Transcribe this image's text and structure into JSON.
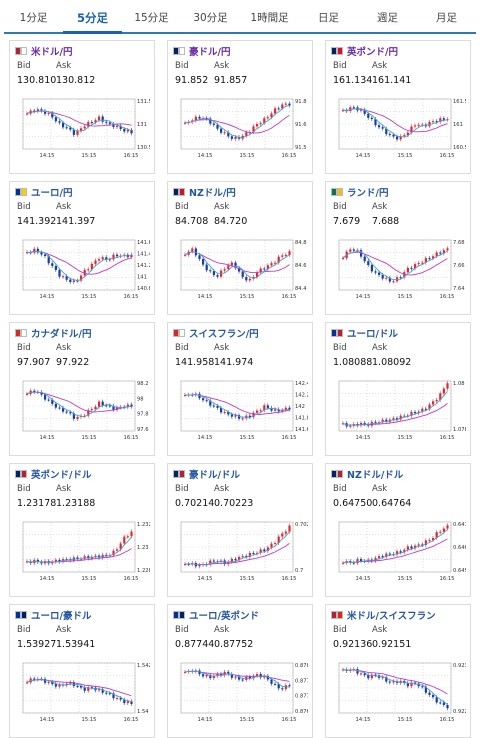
{
  "tabs": [
    "1分足",
    "5分足",
    "15分足",
    "30分足",
    "1時間足",
    "日足",
    "週足",
    "月足"
  ],
  "active_tab": 1,
  "labels": {
    "bid": "Bid",
    "ask": "Ask"
  },
  "colors": {
    "up": "#e8252c",
    "down": "#1a3aa8",
    "ma_fast": "#3da4d6",
    "ma_slow": "#c03ac8",
    "grid": "#c8c8c8"
  },
  "cards": [
    {
      "pair": "米ドル/円",
      "flag": [
        "#b22234",
        "#ffffff"
      ],
      "bid": "130.810",
      "ask": "130.812",
      "xticks": [
        "14:15",
        "15:15",
        "16:15"
      ],
      "yticks": [
        "131.5",
        "131",
        "130.5"
      ],
      "ylim": [
        130.4,
        131.6
      ],
      "trend": [
        131.25,
        131.35,
        131.3,
        131.2,
        131.0,
        130.9,
        130.75,
        130.95,
        131.05,
        131.15,
        131.0,
        130.95,
        130.85,
        130.8
      ]
    },
    {
      "pair": "豪ドル/円",
      "flag": [
        "#012169",
        "#ffffff"
      ],
      "bid": "91.852",
      "ask": "91.857",
      "xticks": [
        "14:15",
        "15:15",
        "16:15"
      ],
      "yticks": [
        "91.8",
        "91.6",
        "91.5"
      ],
      "ylim": [
        91.4,
        91.9
      ],
      "trend": [
        91.65,
        91.7,
        91.72,
        91.68,
        91.6,
        91.55,
        91.5,
        91.52,
        91.58,
        91.65,
        91.7,
        91.78,
        91.84,
        91.85
      ]
    },
    {
      "pair": "英ポンド/円",
      "flag": [
        "#012169",
        "#cf142b"
      ],
      "bid": "161.134",
      "ask": "161.141",
      "xticks": [
        "14:15",
        "15:15",
        "16:15"
      ],
      "yticks": [
        "161.5",
        "161",
        "160.5"
      ],
      "ylim": [
        160.4,
        161.6
      ],
      "trend": [
        161.3,
        161.4,
        161.35,
        161.2,
        161.0,
        160.85,
        160.7,
        160.65,
        160.8,
        161.0,
        160.95,
        161.05,
        161.1,
        161.13
      ]
    },
    {
      "pair": "ユーロ/円",
      "flag": [
        "#003399",
        "#ffcc00"
      ],
      "bid": "141.392",
      "ask": "141.397",
      "xticks": [
        "14:15",
        "15:15",
        "16:15"
      ],
      "yticks": [
        "141.6",
        "141.4",
        "141.2",
        "141",
        "140.8"
      ],
      "ylim": [
        140.7,
        141.7
      ],
      "trend": [
        141.45,
        141.5,
        141.4,
        141.2,
        141.0,
        140.9,
        140.85,
        141.05,
        141.2,
        141.35,
        141.3,
        141.4,
        141.38,
        141.39
      ]
    },
    {
      "pair": "NZドル/円",
      "flag": [
        "#012169",
        "#cc142b"
      ],
      "bid": "84.708",
      "ask": "84.720",
      "xticks": [
        "14:15",
        "15:15",
        "16:15"
      ],
      "yticks": [
        "84.8",
        "84.6",
        "84.4"
      ],
      "ylim": [
        84.3,
        84.85
      ],
      "trend": [
        84.7,
        84.75,
        84.6,
        84.5,
        84.45,
        84.55,
        84.6,
        84.45,
        84.4,
        84.5,
        84.55,
        84.6,
        84.68,
        84.71
      ]
    },
    {
      "pair": "ランド/円",
      "flag": [
        "#007a4d",
        "#ffb612"
      ],
      "bid": "7.679",
      "ask": "7.688",
      "xticks": [
        "14:15",
        "15:15",
        "16:15"
      ],
      "yticks": [
        "7.68",
        "7.66",
        "7.64"
      ],
      "ylim": [
        7.63,
        7.69
      ],
      "trend": [
        7.67,
        7.68,
        7.675,
        7.66,
        7.65,
        7.645,
        7.64,
        7.645,
        7.655,
        7.66,
        7.665,
        7.67,
        7.675,
        7.679
      ]
    },
    {
      "pair": "カナダドル/円",
      "flag": [
        "#d52b1e",
        "#ffffff"
      ],
      "bid": "97.907",
      "ask": "97.922",
      "xticks": [
        "14:15",
        "15:15",
        "16:15"
      ],
      "yticks": [
        "98.2",
        "98",
        "97.8",
        "97.6"
      ],
      "ylim": [
        97.5,
        98.3
      ],
      "trend": [
        98.1,
        98.15,
        98.05,
        97.95,
        97.85,
        97.8,
        97.7,
        97.75,
        97.85,
        97.95,
        97.9,
        97.85,
        97.9,
        97.9
      ]
    },
    {
      "pair": "スイスフラン/円",
      "flag": [
        "#d52b1e",
        "#ffffff"
      ],
      "bid": "141.958",
      "ask": "141.974",
      "xticks": [
        "14:15",
        "15:15",
        "16:15"
      ],
      "yticks": [
        "142.4",
        "142.2",
        "142",
        "141.8",
        "141.6"
      ],
      "ylim": [
        141.5,
        142.5
      ],
      "trend": [
        142.2,
        142.25,
        142.15,
        142.05,
        141.95,
        141.85,
        141.8,
        141.75,
        141.8,
        141.9,
        142.0,
        141.9,
        141.92,
        141.96
      ]
    },
    {
      "pair": "ユーロ/ドル",
      "flag": [
        "#003399",
        "#b22234"
      ],
      "bid": "1.08088",
      "ask": "1.08092",
      "xticks": [
        "14:15",
        "15:15",
        "16:15"
      ],
      "yticks": [
        "1.08",
        "1.078"
      ],
      "ylim": [
        1.077,
        1.081
      ],
      "trend": [
        1.0775,
        1.0774,
        1.0776,
        1.0775,
        1.0777,
        1.0778,
        1.0779,
        1.0781,
        1.0783,
        1.0785,
        1.0787,
        1.0792,
        1.0798,
        1.0809
      ]
    },
    {
      "pair": "英ポンド/ドル",
      "flag": [
        "#012169",
        "#b22234"
      ],
      "bid": "1.23178",
      "ask": "1.23188",
      "xticks": [
        "14:15",
        "15:15",
        "16:15"
      ],
      "yticks": [
        "1.232",
        "1.23",
        "1.228"
      ],
      "ylim": [
        1.227,
        1.233
      ],
      "trend": [
        1.2282,
        1.2283,
        1.2281,
        1.2282,
        1.2284,
        1.2285,
        1.2286,
        1.2287,
        1.2288,
        1.2289,
        1.229,
        1.2295,
        1.231,
        1.2318
      ]
    },
    {
      "pair": "豪ドル/ドル",
      "flag": [
        "#012169",
        "#b22234"
      ],
      "bid": "0.70214",
      "ask": "0.70223",
      "xticks": [
        "14:15",
        "15:15",
        "16:15"
      ],
      "yticks": [
        "0.702",
        "0.7"
      ],
      "ylim": [
        0.6985,
        0.7025
      ],
      "trend": [
        0.6992,
        0.6991,
        0.699,
        0.6993,
        0.6994,
        0.6992,
        0.6995,
        0.6997,
        0.6999,
        0.7001,
        0.7003,
        0.7008,
        0.7015,
        0.7021
      ]
    },
    {
      "pair": "NZドル/ドル",
      "flag": [
        "#012169",
        "#b22234"
      ],
      "bid": "0.64750",
      "ask": "0.64764",
      "xticks": [
        "14:15",
        "15:15",
        "16:15"
      ],
      "yticks": [
        "0.647",
        "0.646",
        "0.645"
      ],
      "ylim": [
        0.6445,
        0.6478
      ],
      "trend": [
        0.6452,
        0.6451,
        0.6453,
        0.6452,
        0.6454,
        0.6456,
        0.6457,
        0.6458,
        0.6461,
        0.6462,
        0.6464,
        0.6467,
        0.6472,
        0.6475
      ]
    },
    {
      "pair": "ユーロ/豪ドル",
      "flag": [
        "#003399",
        "#012169"
      ],
      "bid": "1.53927",
      "ask": "1.53941",
      "xticks": [
        "14:15",
        "15:15",
        "16:15"
      ],
      "yticks": [
        "1.542",
        "1.54"
      ],
      "ylim": [
        1.5385,
        1.5428
      ],
      "trend": [
        1.5412,
        1.5415,
        1.5413,
        1.541,
        1.5408,
        1.5411,
        1.5409,
        1.5405,
        1.5407,
        1.5404,
        1.5402,
        1.5398,
        1.5395,
        1.5393
      ]
    },
    {
      "pair": "ユーロ/英ポンド",
      "flag": [
        "#003399",
        "#012169"
      ],
      "bid": "0.87744",
      "ask": "0.87752",
      "xticks": [
        "14:15",
        "15:15",
        "16:15"
      ],
      "yticks": [
        "0.878",
        "0.8775",
        "0.877",
        "0.8765"
      ],
      "ylim": [
        0.8762,
        0.8783
      ],
      "trend": [
        0.8779,
        0.878,
        0.8778,
        0.8777,
        0.8778,
        0.8779,
        0.8777,
        0.8776,
        0.8777,
        0.8778,
        0.8777,
        0.8774,
        0.8772,
        0.8774
      ]
    },
    {
      "pair": "米ドル/スイスフラン",
      "flag": [
        "#b22234",
        "#d52b1e"
      ],
      "bid": "0.92136",
      "ask": "0.92151",
      "xticks": [
        "14:15",
        "15:15",
        "16:15"
      ],
      "yticks": [
        "0.923",
        "0.922"
      ],
      "ylim": [
        0.9211,
        0.9236
      ],
      "trend": [
        0.9232,
        0.9233,
        0.9231,
        0.9229,
        0.923,
        0.9228,
        0.9226,
        0.9227,
        0.9225,
        0.9226,
        0.9223,
        0.9219,
        0.9216,
        0.9214
      ]
    }
  ]
}
